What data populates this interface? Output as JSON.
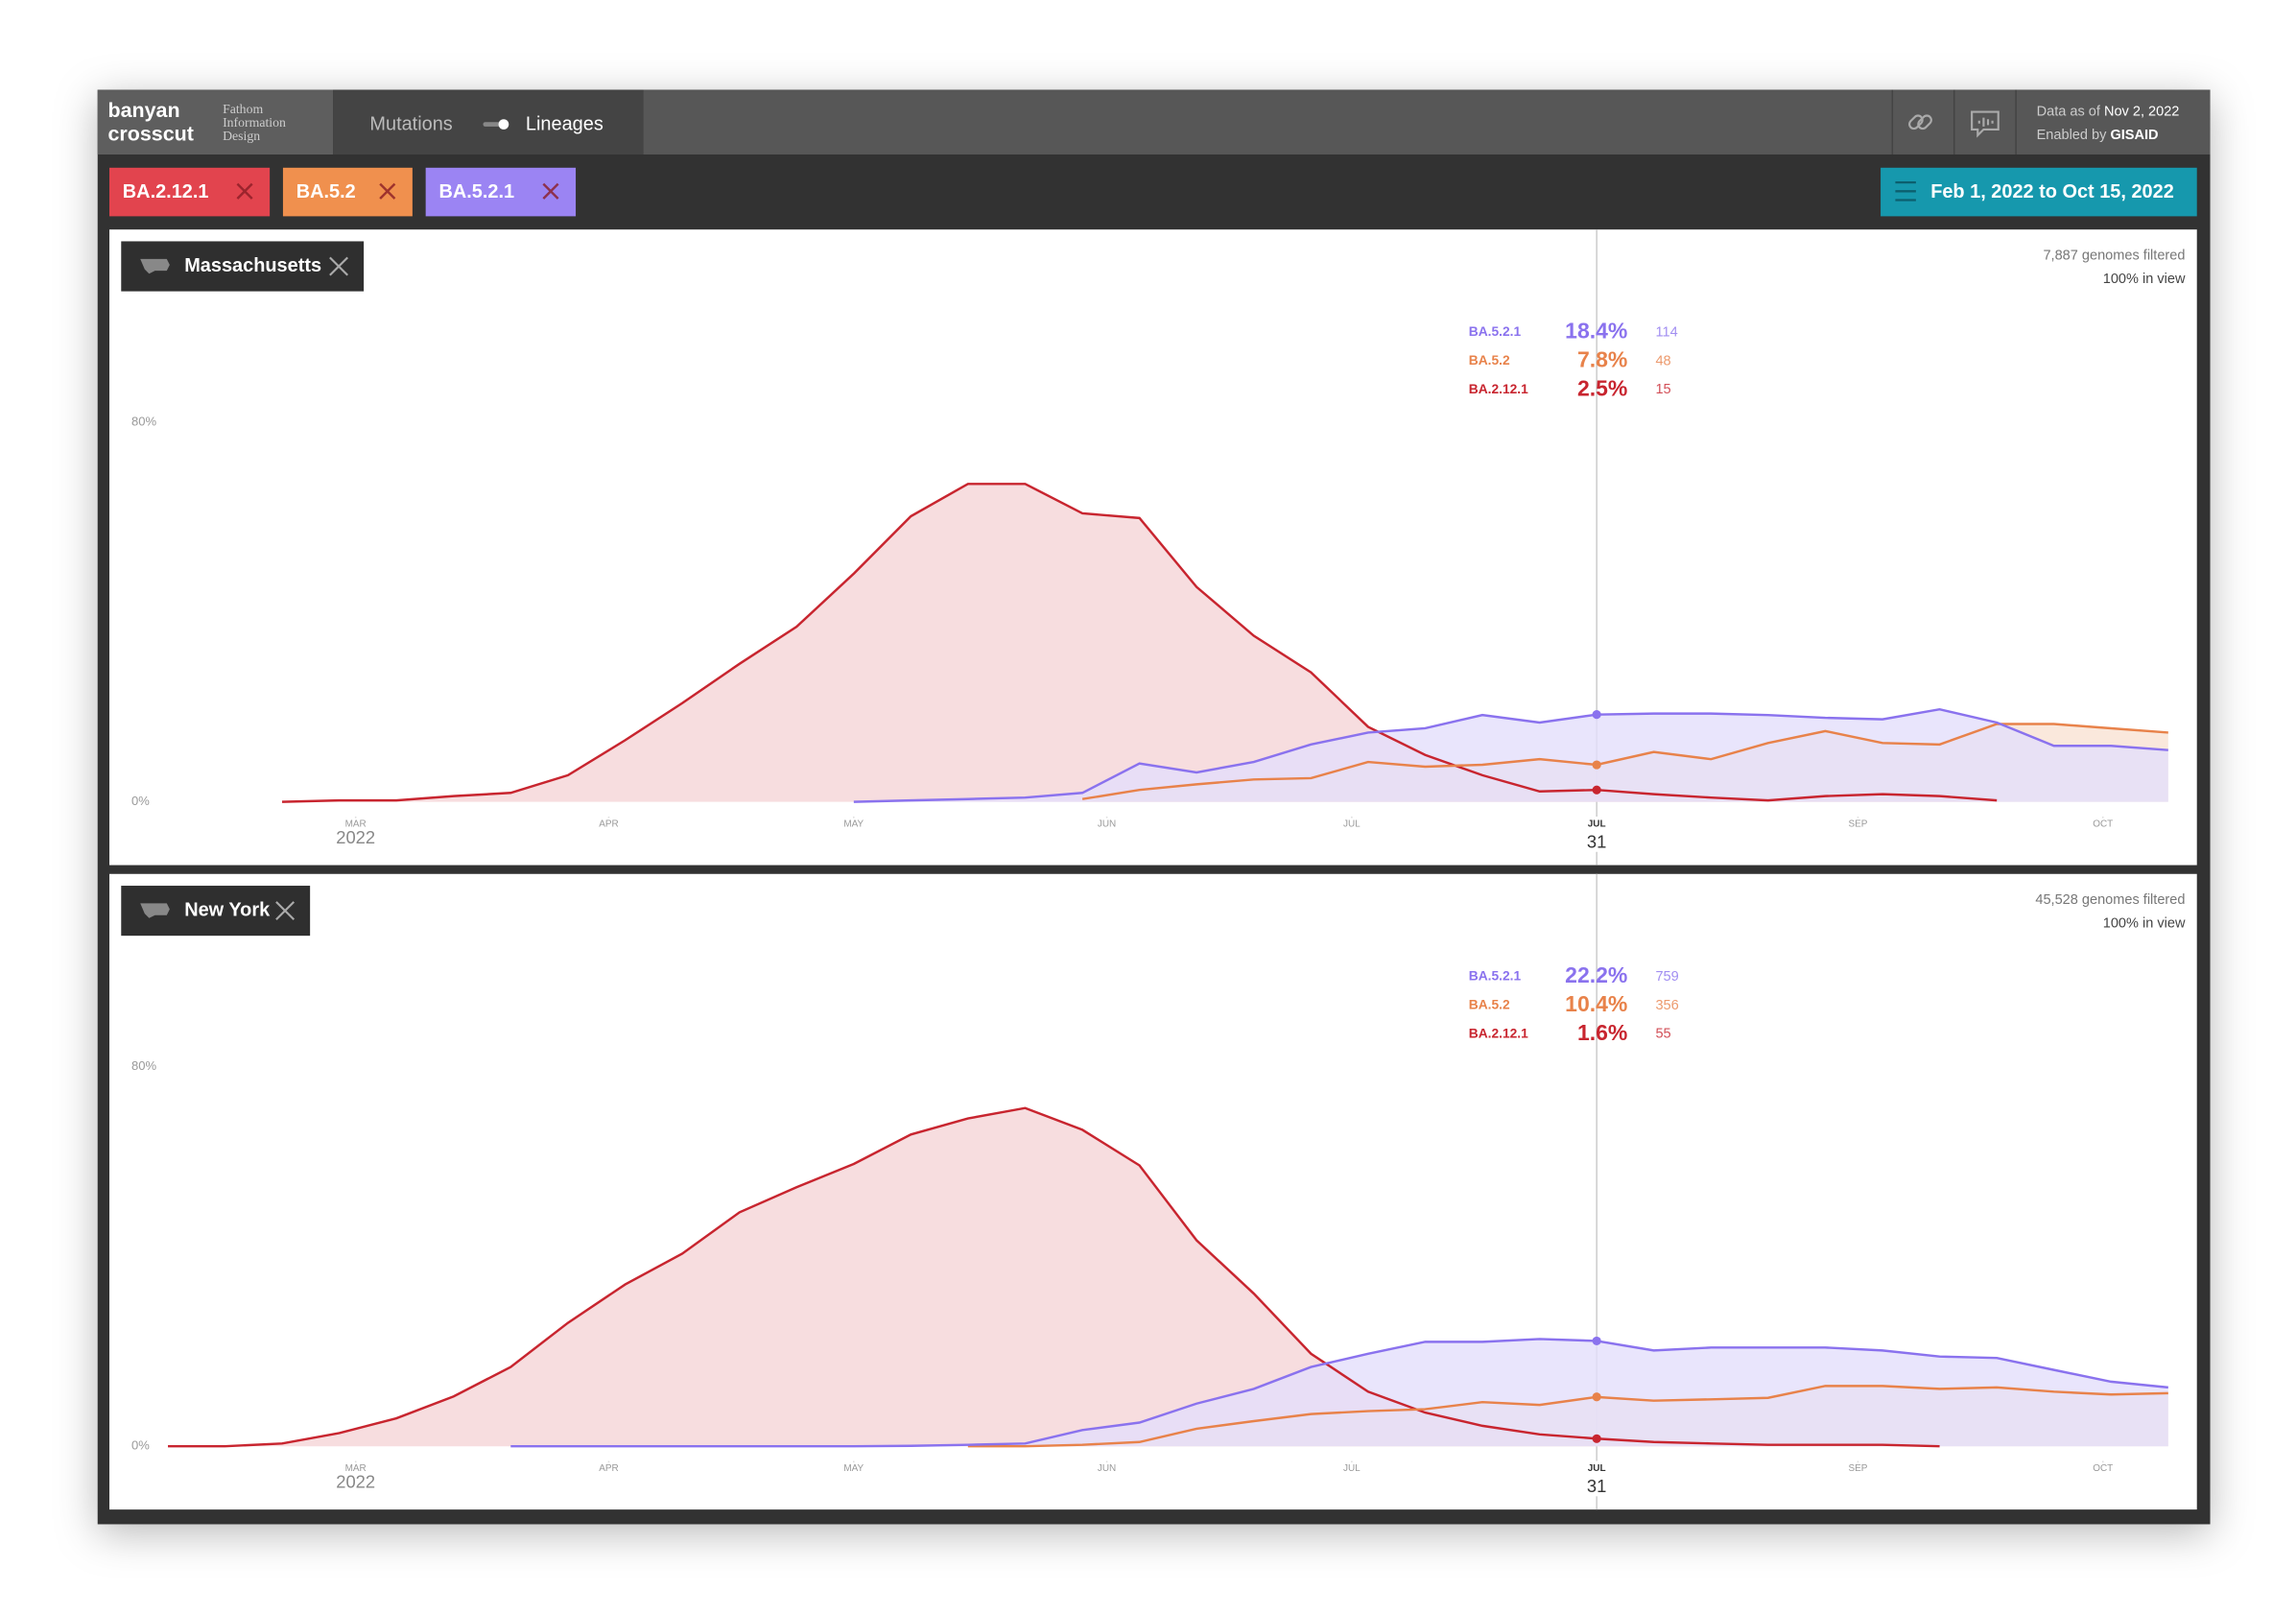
{
  "header": {
    "brand_1": "banyan",
    "brand_2": "crosscut",
    "maker_1": "Fathom",
    "maker_2": "Information",
    "maker_3": "Design",
    "tab_1": "Mutations",
    "tab_2": "Lineages",
    "data_as_of": "Data as of",
    "data_date": "Nov 2, 2022",
    "enabled_by": "Enabled by",
    "source": "GISAID"
  },
  "lineages": [
    {
      "name": "BA.2.12.1",
      "color": "#e2444e"
    },
    {
      "name": "BA.5.2",
      "color": "#f0904e"
    },
    {
      "name": "BA.5.2.1",
      "color": "#9b84f3"
    }
  ],
  "date_range": "Feb 1, 2022 to Oct 15, 2022",
  "panels": [
    {
      "location": "Massachusetts",
      "genomes": "7,887 genomes filtered",
      "in_view": "100% in view",
      "chart_data": {
        "type": "area",
        "xlim": [
          0,
          256
        ],
        "xticks": [
          {
            "value": 28,
            "label": "MAR"
          },
          {
            "value": 59,
            "label": "APR"
          },
          {
            "value": 89,
            "label": "MAY"
          },
          {
            "value": 120,
            "label": "JUN"
          },
          {
            "value": 150,
            "label": "JUL"
          },
          {
            "value": 212,
            "label": "SEP"
          },
          {
            "value": 242,
            "label": "OCT"
          }
        ],
        "year_label": "2022",
        "ylim": [
          0,
          80
        ],
        "yticks": [
          {
            "value": 0,
            "label": "0%"
          },
          {
            "value": 80,
            "label": "80%"
          }
        ],
        "cursor": {
          "x": 180,
          "month": "JUL",
          "day": "31"
        },
        "series": [
          {
            "name": "BA.2.12.1",
            "color": "#c8252f",
            "fill": "#f5d5d7",
            "x": [
              19,
              26,
              33,
              40,
              47,
              54,
              61,
              68,
              75,
              82,
              89,
              96,
              103,
              110,
              117,
              124,
              131,
              138,
              145,
              152,
              159,
              166,
              173,
              180,
              187,
              194,
              201,
              208,
              215,
              222,
              229
            ],
            "values": [
              0,
              0.3,
              0.3,
              1.2,
              1.9,
              5.6,
              13,
              20.8,
              29.1,
              36.9,
              48.1,
              60.2,
              67,
              67,
              60.8,
              59.8,
              45.3,
              35,
              27.3,
              15.8,
              9.9,
              5.6,
              2.2,
              2.5,
              1.6,
              0.9,
              0.3,
              1.2,
              1.6,
              1.2,
              0.3
            ]
          },
          {
            "name": "BA.5.2",
            "color": "#e8824a",
            "fill": "#f9e2d3",
            "x": [
              117,
              124,
              131,
              138,
              145,
              152,
              159,
              166,
              173,
              180,
              187,
              194,
              201,
              208,
              215,
              222,
              229,
              236,
              243,
              250
            ],
            "values": [
              0.6,
              2.5,
              3.7,
              4.7,
              5,
              8.4,
              7.4,
              7.8,
              9,
              7.8,
              10.5,
              9,
              12.4,
              14.9,
              12.4,
              12.1,
              16.4,
              16.4,
              15.5,
              14.6
            ]
          },
          {
            "name": "BA.5.2.1",
            "color": "#8a72ee",
            "fill": "#e4dffb",
            "x": [
              89,
              96,
              103,
              110,
              117,
              124,
              131,
              138,
              145,
              152,
              159,
              166,
              173,
              180,
              187,
              194,
              201,
              208,
              215,
              222,
              229,
              236,
              243,
              250
            ],
            "values": [
              0,
              0.3,
              0.6,
              0.9,
              1.9,
              8.1,
              6.2,
              8.4,
              12.1,
              14.6,
              15.5,
              18.3,
              16.7,
              18.4,
              18.6,
              18.6,
              18.3,
              17.7,
              17.4,
              19.5,
              16.7,
              11.8,
              11.8,
              10.9
            ]
          }
        ],
        "readout": {
          "names": [
            "BA.5.2.1",
            "BA.5.2",
            "BA.2.12.1"
          ],
          "values": [
            18.4,
            7.8,
            2.5
          ],
          "value_labels": [
            "18.4%",
            "7.8%",
            "2.5%"
          ],
          "counts": [
            114,
            48,
            15
          ]
        }
      }
    },
    {
      "location": "New York",
      "genomes": "45,528 genomes filtered",
      "in_view": "100% in view",
      "chart_data": {
        "type": "area",
        "xlim": [
          0,
          256
        ],
        "xticks": [
          {
            "value": 28,
            "label": "MAR"
          },
          {
            "value": 59,
            "label": "APR"
          },
          {
            "value": 89,
            "label": "MAY"
          },
          {
            "value": 120,
            "label": "JUN"
          },
          {
            "value": 150,
            "label": "JUL"
          },
          {
            "value": 212,
            "label": "SEP"
          },
          {
            "value": 242,
            "label": "OCT"
          }
        ],
        "year_label": "2022",
        "ylim": [
          0,
          80
        ],
        "yticks": [
          {
            "value": 0,
            "label": "0%"
          },
          {
            "value": 80,
            "label": "80%"
          }
        ],
        "cursor": {
          "x": 180,
          "month": "JUL",
          "day": "31"
        },
        "series": [
          {
            "name": "BA.2.12.1",
            "color": "#c8252f",
            "fill": "#f5d5d7",
            "x": [
              5,
              12,
              19,
              26,
              33,
              40,
              47,
              54,
              61,
              68,
              75,
              82,
              89,
              96,
              103,
              110,
              117,
              124,
              131,
              138,
              145,
              152,
              159,
              166,
              173,
              180,
              187,
              194,
              201,
              208,
              215,
              222
            ],
            "values": [
              0,
              0,
              0.6,
              2.8,
              5.9,
              10.5,
              16.7,
              26,
              34.1,
              40.6,
              49.3,
              54.6,
              59.5,
              65.7,
              69.1,
              71.3,
              66.7,
              59.2,
              43.4,
              32.2,
              19.5,
              11.5,
              7.1,
              4.3,
              2.5,
              1.6,
              0.9,
              0.6,
              0.3,
              0.3,
              0.3,
              0
            ]
          },
          {
            "name": "BA.5.2",
            "color": "#e8824a",
            "fill": "#f9e2d3",
            "x": [
              103,
              110,
              117,
              124,
              131,
              138,
              145,
              152,
              159,
              166,
              173,
              180,
              187,
              194,
              201,
              208,
              215,
              222,
              229,
              236,
              243,
              250
            ],
            "values": [
              0,
              0,
              0.3,
              0.9,
              3.7,
              5.3,
              6.8,
              7.4,
              7.8,
              9.3,
              8.7,
              10.4,
              9.6,
              9.9,
              10.2,
              12.7,
              12.7,
              12.1,
              12.4,
              11.5,
              10.9,
              11.2
            ]
          },
          {
            "name": "BA.5.2.1",
            "color": "#8a72ee",
            "fill": "#e4dffb",
            "x": [
              47,
              54,
              61,
              68,
              75,
              82,
              89,
              96,
              103,
              110,
              117,
              124,
              131,
              138,
              145,
              152,
              159,
              166,
              173,
              180,
              187,
              194,
              201,
              208,
              215,
              222,
              229,
              236,
              243,
              250
            ],
            "values": [
              0,
              0,
              0,
              0,
              0,
              0,
              0,
              0.1,
              0.3,
              0.6,
              3.4,
              5,
              9,
              12.1,
              16.7,
              19.5,
              22,
              22,
              22.6,
              22.2,
              20.2,
              20.8,
              20.8,
              20.8,
              20.2,
              18.9,
              18.6,
              16.1,
              13.6,
              12.4
            ]
          }
        ],
        "readout": {
          "names": [
            "BA.5.2.1",
            "BA.5.2",
            "BA.2.12.1"
          ],
          "values": [
            22.2,
            10.4,
            1.6
          ],
          "value_labels": [
            "22.2%",
            "10.4%",
            "1.6%"
          ],
          "counts": [
            759,
            356,
            55
          ]
        }
      }
    }
  ]
}
